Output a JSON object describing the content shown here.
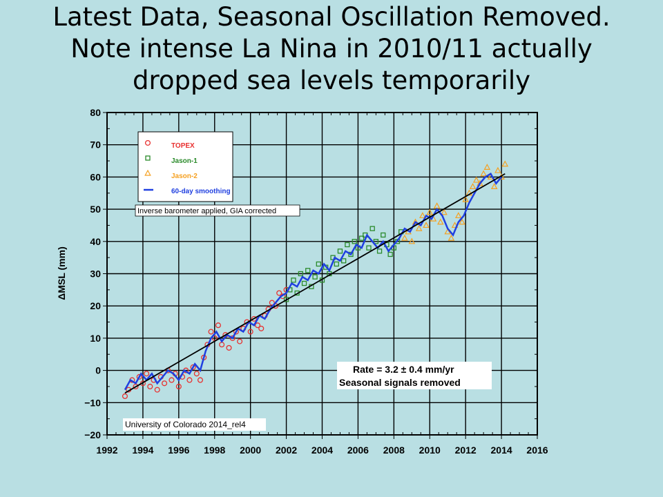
{
  "slide": {
    "title_lines": [
      "Latest Data, Seasonal Oscillation Removed.",
      "Note intense La Nina in 2010/11 actually",
      "dropped sea levels temporarily"
    ]
  },
  "chart_data": {
    "type": "scatter",
    "title": "",
    "xlabel": "",
    "ylabel": "ΔMSL (mm)",
    "xlim": [
      1992,
      2016
    ],
    "ylim": [
      -20,
      80
    ],
    "xticks": [
      1992,
      1994,
      1996,
      1998,
      2000,
      2002,
      2004,
      2006,
      2008,
      2010,
      2012,
      2014,
      2016
    ],
    "yticks": [
      -20,
      -10,
      0,
      10,
      20,
      30,
      40,
      50,
      60,
      70,
      80
    ],
    "grid": true,
    "legend": {
      "placement": "top-left",
      "entries": [
        {
          "label": "TOPEX",
          "marker": "circle",
          "color": "#e8302f"
        },
        {
          "label": "Jason-1",
          "marker": "square",
          "color": "#2a8a2a"
        },
        {
          "label": "Jason-2",
          "marker": "triangle",
          "color": "#f5a020"
        },
        {
          "label": "60-day smoothing",
          "marker": "line",
          "color": "#1f3fe0"
        }
      ]
    },
    "annotations": {
      "barometer": "Inverse barometer applied, GIA corrected",
      "rate_line1": "Rate = 3.2 ± 0.4 mm/yr",
      "rate_line2": "Seasonal signals removed",
      "credit": "University of Colorado 2014_rel4"
    },
    "trend": {
      "x": [
        1993.0,
        2014.2
      ],
      "y": [
        -7,
        61
      ],
      "color": "#000000"
    },
    "series": [
      {
        "name": "TOPEX",
        "color": "#e8302f",
        "marker": "circle",
        "x": [
          1993.0,
          1993.2,
          1993.4,
          1993.6,
          1993.8,
          1994.0,
          1994.2,
          1994.4,
          1994.6,
          1994.8,
          1995.0,
          1995.2,
          1995.4,
          1995.6,
          1995.8,
          1996.0,
          1996.2,
          1996.4,
          1996.6,
          1996.8,
          1997.0,
          1997.2,
          1997.4,
          1997.6,
          1997.8,
          1998.0,
          1998.2,
          1998.4,
          1998.6,
          1998.8,
          1999.0,
          1999.2,
          1999.4,
          1999.6,
          1999.8,
          2000.0,
          2000.2,
          2000.4,
          2000.6,
          2000.8,
          2001.0,
          2001.2,
          2001.4,
          2001.6,
          2001.8,
          2002.0
        ],
        "y": [
          -8,
          -6,
          -3,
          -5,
          -2,
          -4,
          -1,
          -5,
          -3,
          -6,
          -2,
          -4,
          0,
          -3,
          -1,
          -5,
          -2,
          0,
          -3,
          1,
          -1,
          -3,
          4,
          8,
          12,
          10,
          14,
          8,
          11,
          7,
          10,
          12,
          9,
          13,
          15,
          12,
          16,
          14,
          13,
          17,
          19,
          21,
          20,
          24,
          23,
          25
        ]
      },
      {
        "name": "Jason-1",
        "color": "#2a8a2a",
        "marker": "square",
        "x": [
          2002.0,
          2002.2,
          2002.4,
          2002.6,
          2002.8,
          2003.0,
          2003.2,
          2003.4,
          2003.6,
          2003.8,
          2004.0,
          2004.2,
          2004.4,
          2004.6,
          2004.8,
          2005.0,
          2005.2,
          2005.4,
          2005.6,
          2005.8,
          2006.0,
          2006.2,
          2006.4,
          2006.6,
          2006.8,
          2007.0,
          2007.2,
          2007.4,
          2007.6,
          2007.8,
          2008.0,
          2008.2,
          2008.4
        ],
        "y": [
          22,
          25,
          28,
          24,
          30,
          27,
          31,
          26,
          29,
          33,
          28,
          32,
          30,
          35,
          33,
          37,
          34,
          39,
          36,
          40,
          38,
          41,
          42,
          38,
          44,
          40,
          37,
          42,
          39,
          36,
          38,
          40,
          43
        ]
      },
      {
        "name": "Jason-2",
        "color": "#f5a020",
        "marker": "triangle",
        "x": [
          2008.6,
          2008.8,
          2009.0,
          2009.2,
          2009.4,
          2009.6,
          2009.8,
          2010.0,
          2010.2,
          2010.4,
          2010.6,
          2010.8,
          2011.0,
          2011.2,
          2011.4,
          2011.6,
          2011.8,
          2012.0,
          2012.2,
          2012.4,
          2012.6,
          2012.8,
          2013.0,
          2013.2,
          2013.4,
          2013.6,
          2013.8,
          2014.0,
          2014.2
        ],
        "y": [
          41,
          43,
          40,
          46,
          44,
          48,
          45,
          49,
          47,
          51,
          46,
          49,
          43,
          41,
          45,
          48,
          46,
          53,
          55,
          57,
          59,
          58,
          61,
          63,
          60,
          57,
          62,
          60,
          64
        ]
      },
      {
        "name": "60-day smoothing",
        "color": "#1f3fe0",
        "marker": "line",
        "x": [
          1993.0,
          1993.3,
          1993.6,
          1993.9,
          1994.2,
          1994.5,
          1994.8,
          1995.1,
          1995.4,
          1995.7,
          1996.0,
          1996.3,
          1996.6,
          1996.9,
          1997.2,
          1997.5,
          1997.8,
          1998.1,
          1998.4,
          1998.7,
          1999.0,
          1999.3,
          1999.6,
          1999.9,
          2000.2,
          2000.5,
          2000.8,
          2001.1,
          2001.4,
          2001.7,
          2002.0,
          2002.3,
          2002.6,
          2002.9,
          2003.2,
          2003.5,
          2003.8,
          2004.1,
          2004.4,
          2004.7,
          2005.0,
          2005.3,
          2005.6,
          2005.9,
          2006.2,
          2006.5,
          2006.8,
          2007.1,
          2007.4,
          2007.7,
          2008.0,
          2008.3,
          2008.6,
          2008.9,
          2009.2,
          2009.5,
          2009.8,
          2010.1,
          2010.4,
          2010.7,
          2011.0,
          2011.3,
          2011.6,
          2011.9,
          2012.2,
          2012.5,
          2012.8,
          2013.1,
          2013.4,
          2013.7,
          2014.0
        ],
        "y": [
          -6,
          -3,
          -4,
          -1,
          -3,
          -1,
          -4,
          -2,
          0,
          -1,
          -3,
          0,
          -1,
          2,
          0,
          6,
          10,
          12,
          9,
          11,
          10,
          13,
          12,
          15,
          14,
          17,
          16,
          19,
          21,
          23,
          24,
          27,
          26,
          29,
          28,
          31,
          30,
          33,
          31,
          35,
          34,
          37,
          36,
          39,
          38,
          42,
          40,
          38,
          40,
          37,
          39,
          41,
          44,
          43,
          46,
          45,
          48,
          47,
          50,
          48,
          44,
          42,
          46,
          48,
          52,
          55,
          58,
          60,
          61,
          58,
          60
        ]
      }
    ]
  }
}
